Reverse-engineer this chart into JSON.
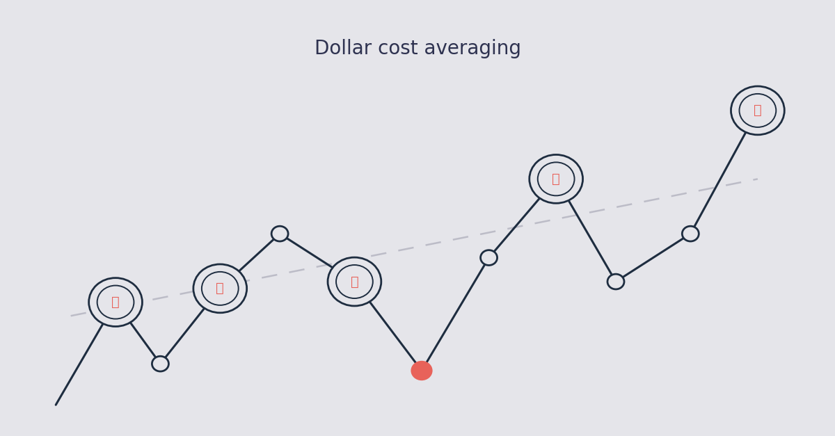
{
  "title": "Dollar cost averaging",
  "title_fontsize": 20,
  "title_color": "#2e3250",
  "bg_color": "#e5e5ea",
  "line_color": "#1e2d40",
  "line_width": 2.2,
  "dash_color": "#b8b8c4",
  "btc_color": "#e8625a",
  "points_x": [
    0.3,
    1.1,
    1.7,
    2.5,
    3.3,
    4.3,
    5.2,
    6.1,
    7.0,
    7.8,
    8.8,
    9.7
  ],
  "points_y": [
    0.2,
    3.2,
    1.4,
    3.6,
    5.2,
    3.8,
    1.2,
    4.5,
    6.8,
    3.8,
    5.2,
    8.8
  ],
  "btc_indices": [
    1,
    3,
    5,
    8,
    11
  ],
  "small_circle_indices": [
    2,
    4,
    7,
    9,
    10
  ],
  "red_dot_index": 6,
  "trend_x": [
    0.5,
    9.7
  ],
  "trend_y": [
    2.8,
    6.8
  ],
  "xlim": [
    0.0,
    10.4
  ],
  "ylim": [
    -0.2,
    10.5
  ]
}
